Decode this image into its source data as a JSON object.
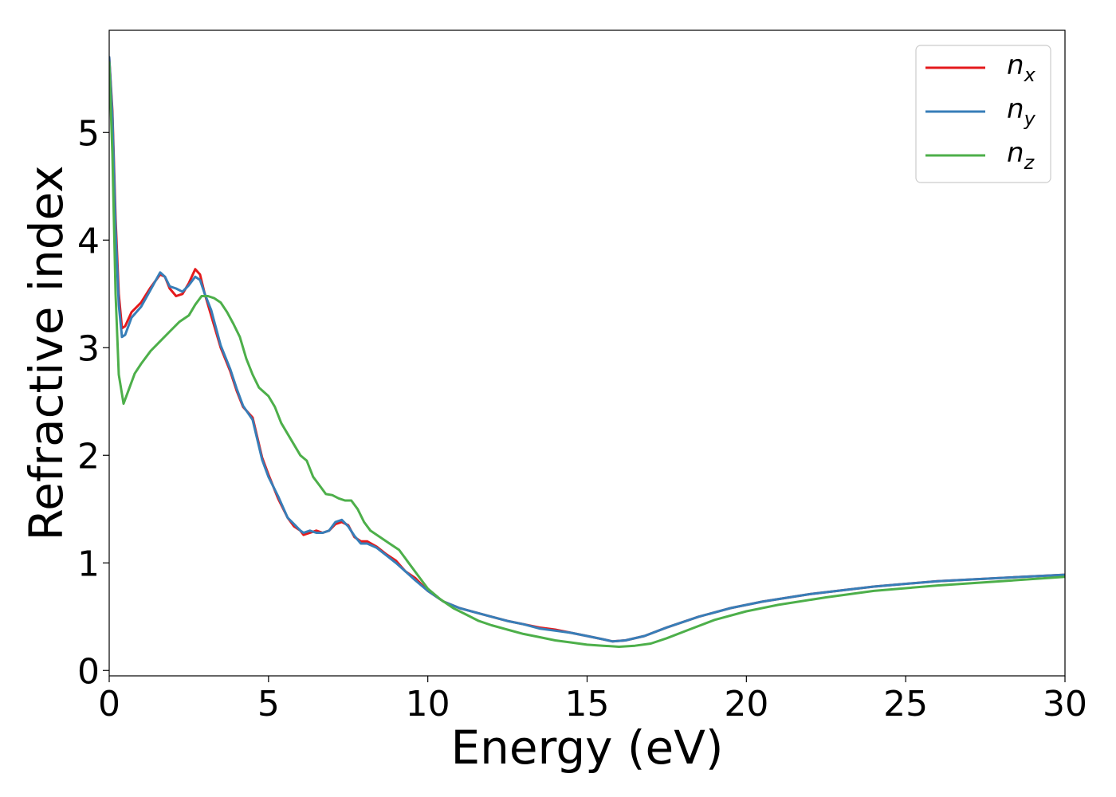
{
  "chart_data": {
    "type": "line",
    "title": "",
    "xlabel": "Energy (eV)",
    "ylabel": "Refractive index",
    "xlim": [
      0,
      30
    ],
    "ylim": [
      -0.05,
      5.95
    ],
    "xticks": [
      "0",
      "5",
      "10",
      "15",
      "20",
      "25",
      "30"
    ],
    "yticks": [
      "0",
      "1",
      "2",
      "3",
      "4",
      "5"
    ],
    "grid": false,
    "legend_position": "top-right",
    "series": [
      {
        "name": "n_x",
        "label_main": "n",
        "label_sub": "x",
        "color": "#e41a1c",
        "points": [
          [
            0,
            5.7
          ],
          [
            0.1,
            5.2
          ],
          [
            0.2,
            4.2
          ],
          [
            0.3,
            3.5
          ],
          [
            0.4,
            3.18
          ],
          [
            0.5,
            3.2
          ],
          [
            0.7,
            3.33
          ],
          [
            1.0,
            3.42
          ],
          [
            1.3,
            3.56
          ],
          [
            1.6,
            3.68
          ],
          [
            1.75,
            3.66
          ],
          [
            1.9,
            3.55
          ],
          [
            2.1,
            3.48
          ],
          [
            2.3,
            3.5
          ],
          [
            2.5,
            3.6
          ],
          [
            2.7,
            3.73
          ],
          [
            2.85,
            3.68
          ],
          [
            3.0,
            3.5
          ],
          [
            3.2,
            3.3
          ],
          [
            3.5,
            3.0
          ],
          [
            3.8,
            2.78
          ],
          [
            4.0,
            2.6
          ],
          [
            4.2,
            2.45
          ],
          [
            4.5,
            2.35
          ],
          [
            4.8,
            1.98
          ],
          [
            5.0,
            1.82
          ],
          [
            5.3,
            1.6
          ],
          [
            5.6,
            1.42
          ],
          [
            5.8,
            1.34
          ],
          [
            6.0,
            1.3
          ],
          [
            6.1,
            1.26
          ],
          [
            6.3,
            1.28
          ],
          [
            6.5,
            1.3
          ],
          [
            6.7,
            1.28
          ],
          [
            6.9,
            1.3
          ],
          [
            7.1,
            1.36
          ],
          [
            7.3,
            1.38
          ],
          [
            7.5,
            1.35
          ],
          [
            7.7,
            1.24
          ],
          [
            7.9,
            1.2
          ],
          [
            8.1,
            1.2
          ],
          [
            8.4,
            1.15
          ],
          [
            8.7,
            1.08
          ],
          [
            9.0,
            1.02
          ],
          [
            9.3,
            0.92
          ],
          [
            9.6,
            0.86
          ],
          [
            10.0,
            0.74
          ],
          [
            10.5,
            0.64
          ],
          [
            11.0,
            0.58
          ],
          [
            11.5,
            0.54
          ],
          [
            12.0,
            0.5
          ],
          [
            12.5,
            0.46
          ],
          [
            13.0,
            0.43
          ],
          [
            13.5,
            0.4
          ],
          [
            14.0,
            0.38
          ],
          [
            14.5,
            0.35
          ],
          [
            15.0,
            0.32
          ],
          [
            15.5,
            0.29
          ],
          [
            15.8,
            0.27
          ],
          [
            16.2,
            0.28
          ],
          [
            16.8,
            0.32
          ],
          [
            17.5,
            0.4
          ],
          [
            18.5,
            0.5
          ],
          [
            19.5,
            0.58
          ],
          [
            20.5,
            0.64
          ],
          [
            22.0,
            0.71
          ],
          [
            24.0,
            0.78
          ],
          [
            26.0,
            0.83
          ],
          [
            28.0,
            0.86
          ],
          [
            30.0,
            0.89
          ]
        ]
      },
      {
        "name": "n_y",
        "label_main": "n",
        "label_sub": "y",
        "color": "#377eb8",
        "points": [
          [
            0,
            5.7
          ],
          [
            0.1,
            5.15
          ],
          [
            0.2,
            4.1
          ],
          [
            0.3,
            3.4
          ],
          [
            0.4,
            3.1
          ],
          [
            0.5,
            3.12
          ],
          [
            0.7,
            3.28
          ],
          [
            1.0,
            3.38
          ],
          [
            1.3,
            3.54
          ],
          [
            1.6,
            3.7
          ],
          [
            1.75,
            3.66
          ],
          [
            1.9,
            3.57
          ],
          [
            2.1,
            3.55
          ],
          [
            2.3,
            3.52
          ],
          [
            2.5,
            3.58
          ],
          [
            2.7,
            3.66
          ],
          [
            2.85,
            3.63
          ],
          [
            3.0,
            3.5
          ],
          [
            3.2,
            3.35
          ],
          [
            3.5,
            3.02
          ],
          [
            3.8,
            2.8
          ],
          [
            4.0,
            2.62
          ],
          [
            4.2,
            2.46
          ],
          [
            4.5,
            2.33
          ],
          [
            4.8,
            1.96
          ],
          [
            5.0,
            1.8
          ],
          [
            5.3,
            1.62
          ],
          [
            5.6,
            1.42
          ],
          [
            5.8,
            1.36
          ],
          [
            6.0,
            1.3
          ],
          [
            6.1,
            1.28
          ],
          [
            6.3,
            1.3
          ],
          [
            6.5,
            1.28
          ],
          [
            6.7,
            1.28
          ],
          [
            6.9,
            1.3
          ],
          [
            7.1,
            1.38
          ],
          [
            7.3,
            1.4
          ],
          [
            7.5,
            1.34
          ],
          [
            7.7,
            1.25
          ],
          [
            7.9,
            1.18
          ],
          [
            8.1,
            1.18
          ],
          [
            8.4,
            1.14
          ],
          [
            8.7,
            1.07
          ],
          [
            9.0,
            1.0
          ],
          [
            9.3,
            0.92
          ],
          [
            9.6,
            0.84
          ],
          [
            10.0,
            0.74
          ],
          [
            10.5,
            0.64
          ],
          [
            11.0,
            0.58
          ],
          [
            11.5,
            0.54
          ],
          [
            12.0,
            0.5
          ],
          [
            12.5,
            0.46
          ],
          [
            13.0,
            0.43
          ],
          [
            13.5,
            0.39
          ],
          [
            14.0,
            0.37
          ],
          [
            14.5,
            0.35
          ],
          [
            15.0,
            0.32
          ],
          [
            15.5,
            0.29
          ],
          [
            15.8,
            0.27
          ],
          [
            16.2,
            0.28
          ],
          [
            16.8,
            0.32
          ],
          [
            17.5,
            0.4
          ],
          [
            18.5,
            0.5
          ],
          [
            19.5,
            0.58
          ],
          [
            20.5,
            0.64
          ],
          [
            22.0,
            0.71
          ],
          [
            24.0,
            0.78
          ],
          [
            26.0,
            0.83
          ],
          [
            28.0,
            0.86
          ],
          [
            30.0,
            0.89
          ]
        ]
      },
      {
        "name": "n_z",
        "label_main": "n",
        "label_sub": "z",
        "color": "#4daf4a",
        "points": [
          [
            0,
            5.65
          ],
          [
            0.1,
            4.8
          ],
          [
            0.2,
            3.5
          ],
          [
            0.3,
            2.75
          ],
          [
            0.45,
            2.48
          ],
          [
            0.6,
            2.6
          ],
          [
            0.8,
            2.76
          ],
          [
            1.0,
            2.85
          ],
          [
            1.3,
            2.97
          ],
          [
            1.6,
            3.06
          ],
          [
            1.9,
            3.15
          ],
          [
            2.2,
            3.24
          ],
          [
            2.5,
            3.3
          ],
          [
            2.7,
            3.4
          ],
          [
            2.9,
            3.48
          ],
          [
            3.1,
            3.48
          ],
          [
            3.3,
            3.46
          ],
          [
            3.5,
            3.42
          ],
          [
            3.7,
            3.33
          ],
          [
            3.9,
            3.22
          ],
          [
            4.1,
            3.1
          ],
          [
            4.3,
            2.9
          ],
          [
            4.5,
            2.75
          ],
          [
            4.7,
            2.63
          ],
          [
            5.0,
            2.55
          ],
          [
            5.2,
            2.45
          ],
          [
            5.4,
            2.3
          ],
          [
            5.6,
            2.2
          ],
          [
            5.8,
            2.1
          ],
          [
            6.0,
            2.0
          ],
          [
            6.2,
            1.95
          ],
          [
            6.4,
            1.8
          ],
          [
            6.6,
            1.72
          ],
          [
            6.8,
            1.64
          ],
          [
            7.0,
            1.63
          ],
          [
            7.2,
            1.6
          ],
          [
            7.4,
            1.58
          ],
          [
            7.6,
            1.58
          ],
          [
            7.8,
            1.5
          ],
          [
            8.0,
            1.38
          ],
          [
            8.2,
            1.3
          ],
          [
            8.5,
            1.24
          ],
          [
            8.8,
            1.18
          ],
          [
            9.1,
            1.12
          ],
          [
            9.4,
            1.0
          ],
          [
            9.7,
            0.88
          ],
          [
            10.0,
            0.76
          ],
          [
            10.4,
            0.66
          ],
          [
            10.8,
            0.58
          ],
          [
            11.2,
            0.52
          ],
          [
            11.6,
            0.46
          ],
          [
            12.0,
            0.42
          ],
          [
            12.5,
            0.38
          ],
          [
            13.0,
            0.34
          ],
          [
            13.5,
            0.31
          ],
          [
            14.0,
            0.28
          ],
          [
            14.5,
            0.26
          ],
          [
            15.0,
            0.24
          ],
          [
            15.5,
            0.23
          ],
          [
            16.0,
            0.22
          ],
          [
            16.5,
            0.23
          ],
          [
            17.0,
            0.25
          ],
          [
            17.5,
            0.3
          ],
          [
            18.2,
            0.38
          ],
          [
            19.0,
            0.47
          ],
          [
            20.0,
            0.55
          ],
          [
            21.0,
            0.61
          ],
          [
            22.5,
            0.68
          ],
          [
            24.0,
            0.74
          ],
          [
            26.0,
            0.79
          ],
          [
            28.0,
            0.83
          ],
          [
            30.0,
            0.87
          ]
        ]
      }
    ]
  }
}
